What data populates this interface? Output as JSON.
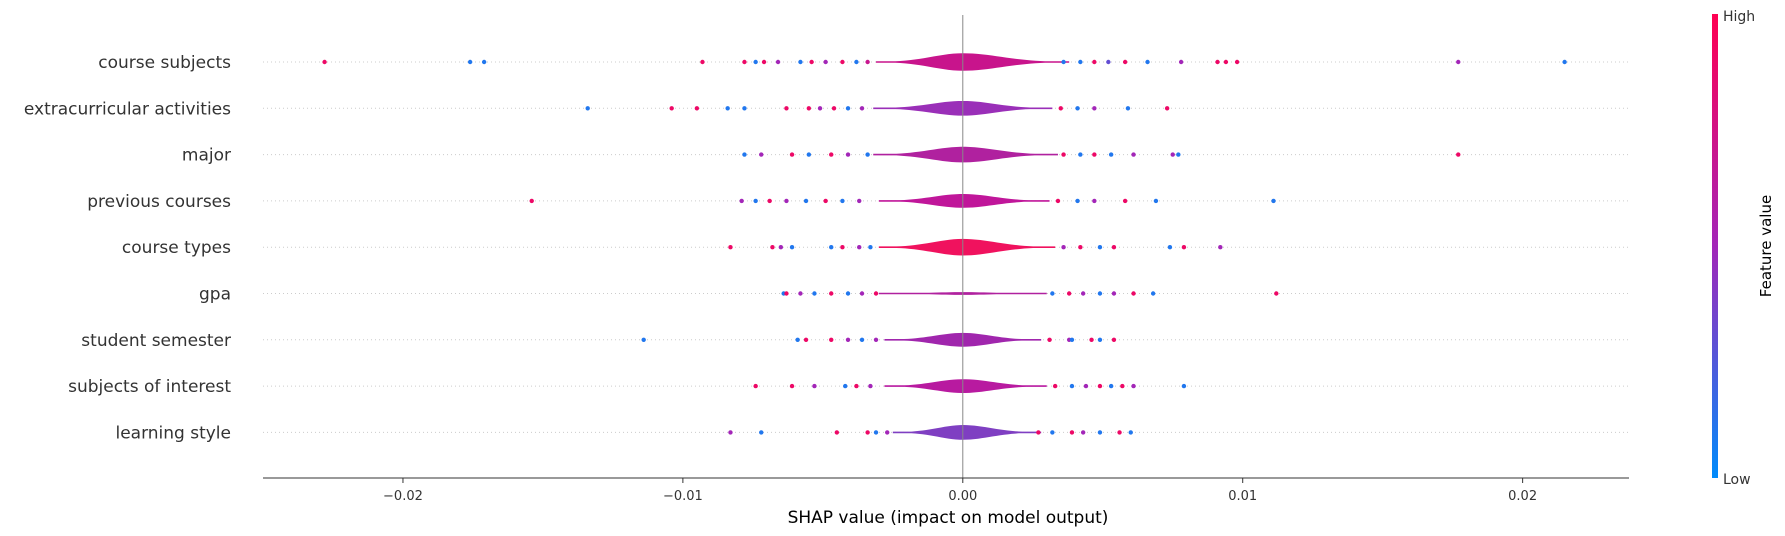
{
  "chart_data": {
    "type": "scatter",
    "subtype": "shap-summary-violin",
    "title": "",
    "xlabel": "SHAP value (impact on model output)",
    "ylabel": "",
    "xlim": [
      -0.025,
      0.0238
    ],
    "xticks": [
      -0.02,
      -0.01,
      0.0,
      0.01,
      0.02
    ],
    "xtick_labels": [
      "−0.02",
      "−0.01",
      "0.00",
      "0.01",
      "0.02"
    ],
    "features": [
      {
        "name": "course subjects",
        "violin": {
          "extent": [
            -0.0031,
            0.0038
          ],
          "color": "#c8148c",
          "max_width": 0.38
        },
        "points": [
          {
            "x": -0.0228,
            "v": 0.9
          },
          {
            "x": -0.0176,
            "v": 0.1
          },
          {
            "x": -0.0171,
            "v": 0.1
          },
          {
            "x": -0.0093,
            "v": 0.9
          },
          {
            "x": -0.0078,
            "v": 0.9
          },
          {
            "x": -0.0074,
            "v": 0.1
          },
          {
            "x": -0.0071,
            "v": 0.9
          },
          {
            "x": -0.0066,
            "v": 0.5
          },
          {
            "x": -0.0058,
            "v": 0.1
          },
          {
            "x": -0.0054,
            "v": 0.9
          },
          {
            "x": -0.0049,
            "v": 0.5
          },
          {
            "x": -0.0043,
            "v": 0.9
          },
          {
            "x": -0.0038,
            "v": 0.1
          },
          {
            "x": -0.0034,
            "v": 0.7
          },
          {
            "x": 0.0036,
            "v": 0.1
          },
          {
            "x": 0.0042,
            "v": 0.1
          },
          {
            "x": 0.0047,
            "v": 0.9
          },
          {
            "x": 0.0052,
            "v": 0.3
          },
          {
            "x": 0.0058,
            "v": 0.9
          },
          {
            "x": 0.0066,
            "v": 0.1
          },
          {
            "x": 0.0078,
            "v": 0.5
          },
          {
            "x": 0.0091,
            "v": 0.9
          },
          {
            "x": 0.0094,
            "v": 0.9
          },
          {
            "x": 0.0098,
            "v": 0.9
          },
          {
            "x": 0.0177,
            "v": 0.5
          },
          {
            "x": 0.0215,
            "v": 0.1
          }
        ]
      },
      {
        "name": "extracurricular activities",
        "violin": {
          "extent": [
            -0.0032,
            0.0032
          ],
          "color": "#9a2fb8",
          "max_width": 0.32
        },
        "points": [
          {
            "x": -0.0134,
            "v": 0.1
          },
          {
            "x": -0.0104,
            "v": 0.9
          },
          {
            "x": -0.0095,
            "v": 0.9
          },
          {
            "x": -0.0084,
            "v": 0.1
          },
          {
            "x": -0.0078,
            "v": 0.1
          },
          {
            "x": -0.0063,
            "v": 0.9
          },
          {
            "x": -0.0055,
            "v": 0.9
          },
          {
            "x": -0.0051,
            "v": 0.5
          },
          {
            "x": -0.0046,
            "v": 0.9
          },
          {
            "x": -0.0041,
            "v": 0.1
          },
          {
            "x": -0.0036,
            "v": 0.5
          },
          {
            "x": 0.0035,
            "v": 0.9
          },
          {
            "x": 0.0041,
            "v": 0.1
          },
          {
            "x": 0.0047,
            "v": 0.5
          },
          {
            "x": 0.0059,
            "v": 0.1
          },
          {
            "x": 0.0073,
            "v": 0.9
          }
        ]
      },
      {
        "name": "major",
        "violin": {
          "extent": [
            -0.0032,
            0.0034
          ],
          "color": "#b0219f",
          "max_width": 0.34
        },
        "points": [
          {
            "x": -0.0078,
            "v": 0.1
          },
          {
            "x": -0.0072,
            "v": 0.5
          },
          {
            "x": -0.0061,
            "v": 0.9
          },
          {
            "x": -0.0055,
            "v": 0.1
          },
          {
            "x": -0.0047,
            "v": 0.9
          },
          {
            "x": -0.0041,
            "v": 0.5
          },
          {
            "x": -0.0034,
            "v": 0.1
          },
          {
            "x": 0.0036,
            "v": 0.9
          },
          {
            "x": 0.0042,
            "v": 0.1
          },
          {
            "x": 0.0047,
            "v": 0.9
          },
          {
            "x": 0.0053,
            "v": 0.1
          },
          {
            "x": 0.0061,
            "v": 0.5
          },
          {
            "x": 0.0075,
            "v": 0.5
          },
          {
            "x": 0.0077,
            "v": 0.1
          },
          {
            "x": 0.0177,
            "v": 0.9
          }
        ]
      },
      {
        "name": "previous courses",
        "violin": {
          "extent": [
            -0.003,
            0.0031
          ],
          "color": "#c0169a",
          "max_width": 0.3
        },
        "points": [
          {
            "x": -0.0154,
            "v": 0.9
          },
          {
            "x": -0.0079,
            "v": 0.5
          },
          {
            "x": -0.0074,
            "v": 0.1
          },
          {
            "x": -0.0069,
            "v": 0.9
          },
          {
            "x": -0.0063,
            "v": 0.5
          },
          {
            "x": -0.0056,
            "v": 0.1
          },
          {
            "x": -0.0049,
            "v": 0.9
          },
          {
            "x": -0.0043,
            "v": 0.1
          },
          {
            "x": -0.0037,
            "v": 0.5
          },
          {
            "x": 0.0034,
            "v": 0.9
          },
          {
            "x": 0.0041,
            "v": 0.1
          },
          {
            "x": 0.0047,
            "v": 0.5
          },
          {
            "x": 0.0058,
            "v": 0.9
          },
          {
            "x": 0.0069,
            "v": 0.1
          },
          {
            "x": 0.0111,
            "v": 0.1
          }
        ]
      },
      {
        "name": "course types",
        "violin": {
          "extent": [
            -0.003,
            0.0033
          ],
          "color": "#f0125e",
          "max_width": 0.36
        },
        "points": [
          {
            "x": -0.0083,
            "v": 0.9
          },
          {
            "x": -0.0068,
            "v": 0.9
          },
          {
            "x": -0.0065,
            "v": 0.5
          },
          {
            "x": -0.0061,
            "v": 0.1
          },
          {
            "x": -0.0047,
            "v": 0.1
          },
          {
            "x": -0.0043,
            "v": 0.9
          },
          {
            "x": -0.0037,
            "v": 0.5
          },
          {
            "x": -0.0033,
            "v": 0.1
          },
          {
            "x": 0.0036,
            "v": 0.5
          },
          {
            "x": 0.0042,
            "v": 0.9
          },
          {
            "x": 0.0049,
            "v": 0.1
          },
          {
            "x": 0.0054,
            "v": 0.9
          },
          {
            "x": 0.0074,
            "v": 0.1
          },
          {
            "x": 0.0079,
            "v": 0.9
          },
          {
            "x": 0.0092,
            "v": 0.5
          }
        ]
      },
      {
        "name": "gpa",
        "violin": {
          "extent": [
            -0.003,
            0.003
          ],
          "color": "#b0219f",
          "max_width": 0.06
        },
        "points": [
          {
            "x": -0.0064,
            "v": 0.1
          },
          {
            "x": -0.0063,
            "v": 0.9
          },
          {
            "x": -0.0058,
            "v": 0.5
          },
          {
            "x": -0.0053,
            "v": 0.1
          },
          {
            "x": -0.0047,
            "v": 0.9
          },
          {
            "x": -0.0041,
            "v": 0.1
          },
          {
            "x": -0.0036,
            "v": 0.5
          },
          {
            "x": -0.0031,
            "v": 0.9
          },
          {
            "x": 0.0032,
            "v": 0.1
          },
          {
            "x": 0.0038,
            "v": 0.9
          },
          {
            "x": 0.0043,
            "v": 0.5
          },
          {
            "x": 0.0049,
            "v": 0.1
          },
          {
            "x": 0.0054,
            "v": 0.5
          },
          {
            "x": 0.0061,
            "v": 0.9
          },
          {
            "x": 0.0068,
            "v": 0.1
          },
          {
            "x": 0.0112,
            "v": 0.9
          }
        ]
      },
      {
        "name": "student semester",
        "violin": {
          "extent": [
            -0.0028,
            0.0028
          ],
          "color": "#a026ad",
          "max_width": 0.3
        },
        "points": [
          {
            "x": -0.0114,
            "v": 0.1
          },
          {
            "x": -0.0059,
            "v": 0.1
          },
          {
            "x": -0.0056,
            "v": 0.9
          },
          {
            "x": -0.0047,
            "v": 0.9
          },
          {
            "x": -0.0041,
            "v": 0.5
          },
          {
            "x": -0.0036,
            "v": 0.1
          },
          {
            "x": -0.0031,
            "v": 0.5
          },
          {
            "x": 0.0031,
            "v": 0.9
          },
          {
            "x": 0.0038,
            "v": 0.5
          },
          {
            "x": 0.0039,
            "v": 0.1
          },
          {
            "x": 0.0046,
            "v": 0.9
          },
          {
            "x": 0.0049,
            "v": 0.1
          },
          {
            "x": 0.0054,
            "v": 0.9
          }
        ]
      },
      {
        "name": "subjects of interest",
        "violin": {
          "extent": [
            -0.0028,
            0.003
          ],
          "color": "#b81aa0",
          "max_width": 0.3
        },
        "points": [
          {
            "x": -0.0074,
            "v": 0.9
          },
          {
            "x": -0.0061,
            "v": 0.9
          },
          {
            "x": -0.0053,
            "v": 0.5
          },
          {
            "x": -0.0042,
            "v": 0.1
          },
          {
            "x": -0.0038,
            "v": 0.9
          },
          {
            "x": -0.0033,
            "v": 0.5
          },
          {
            "x": 0.0033,
            "v": 0.9
          },
          {
            "x": 0.0039,
            "v": 0.1
          },
          {
            "x": 0.0044,
            "v": 0.5
          },
          {
            "x": 0.0049,
            "v": 0.9
          },
          {
            "x": 0.0053,
            "v": 0.1
          },
          {
            "x": 0.0057,
            "v": 0.9
          },
          {
            "x": 0.0061,
            "v": 0.5
          },
          {
            "x": 0.0079,
            "v": 0.1
          }
        ]
      },
      {
        "name": "learning style",
        "violin": {
          "extent": [
            -0.0025,
            0.0028
          ],
          "color": "#7f3fc2",
          "max_width": 0.32
        },
        "points": [
          {
            "x": -0.0083,
            "v": 0.5
          },
          {
            "x": -0.0072,
            "v": 0.1
          },
          {
            "x": -0.0045,
            "v": 0.9
          },
          {
            "x": -0.0034,
            "v": 0.9
          },
          {
            "x": -0.0031,
            "v": 0.1
          },
          {
            "x": -0.0027,
            "v": 0.5
          },
          {
            "x": 0.0027,
            "v": 0.9
          },
          {
            "x": 0.0032,
            "v": 0.1
          },
          {
            "x": 0.0039,
            "v": 0.9
          },
          {
            "x": 0.0043,
            "v": 0.5
          },
          {
            "x": 0.0049,
            "v": 0.1
          },
          {
            "x": 0.0056,
            "v": 0.9
          },
          {
            "x": 0.006,
            "v": 0.1
          }
        ]
      }
    ],
    "colorbar": {
      "label": "Feature value",
      "high_label": "High",
      "low_label": "Low",
      "low_color": "#008bfb",
      "high_color": "#ff0052"
    },
    "grid": false,
    "legend": "right (colorbar)"
  }
}
